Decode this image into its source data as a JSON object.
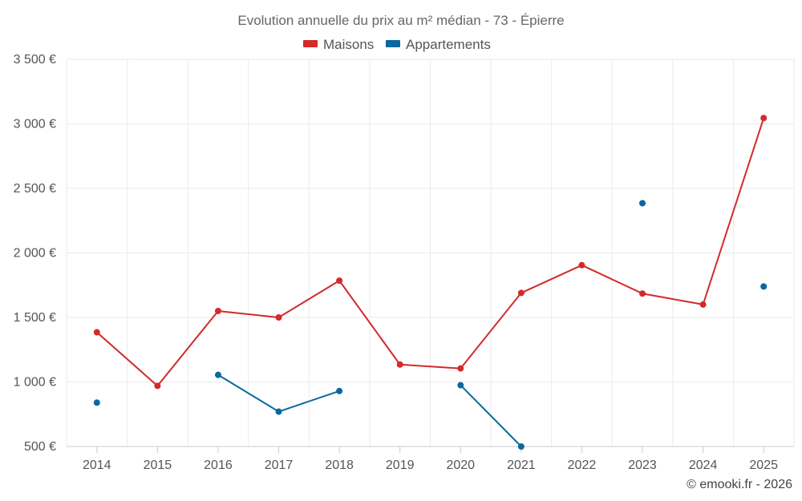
{
  "chart_data": {
    "type": "line",
    "title": "Evolution annuelle du prix au m² médian - 73 - Épierre",
    "categories": [
      "2014",
      "2015",
      "2016",
      "2017",
      "2018",
      "2019",
      "2020",
      "2021",
      "2022",
      "2023",
      "2024",
      "2025"
    ],
    "series": [
      {
        "name": "Maisons",
        "color": "#d32a2a",
        "values": [
          1385,
          970,
          1550,
          1500,
          1785,
          1135,
          1105,
          1690,
          1905,
          1685,
          1600,
          3045
        ]
      },
      {
        "name": "Appartements",
        "color": "#0a68a0",
        "values": [
          840,
          null,
          1055,
          770,
          930,
          null,
          975,
          500,
          null,
          2385,
          null,
          1740
        ]
      }
    ],
    "y_ticks": [
      "500 €",
      "1 000 €",
      "1 500 €",
      "2 000 €",
      "2 500 €",
      "3 000 €",
      "3 500 €"
    ],
    "y_tick_values": [
      500,
      1000,
      1500,
      2000,
      2500,
      3000,
      3500
    ],
    "ylim": [
      500,
      3500
    ],
    "xlabel": "",
    "ylabel": "",
    "grid": true,
    "legend_position": "top-center"
  },
  "credit": "© emooki.fr - 2026"
}
